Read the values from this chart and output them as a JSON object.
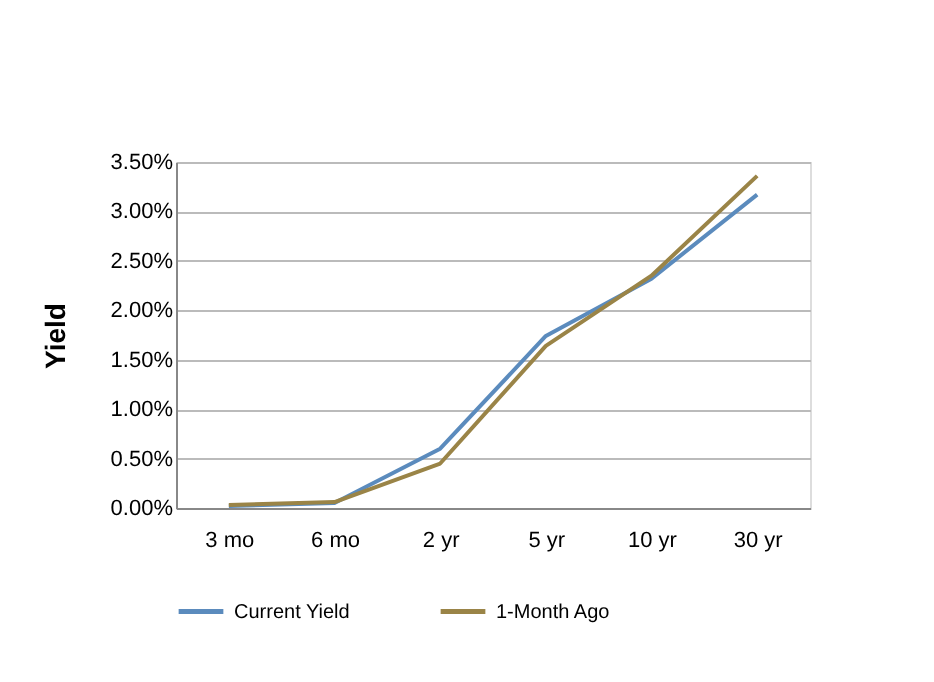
{
  "chart_data": {
    "type": "line",
    "ylabel": "Yield",
    "categories": [
      "3 mo",
      "6 mo",
      "2 yr",
      "5 yr",
      "10 yr",
      "30 yr"
    ],
    "series": [
      {
        "name": "Current Yield",
        "color": "#5b8bbd",
        "values": [
          0.02,
          0.05,
          0.6,
          1.74,
          2.32,
          3.17
        ]
      },
      {
        "name": "1-Month Ago",
        "color": "#9a8447",
        "values": [
          0.03,
          0.06,
          0.45,
          1.64,
          2.35,
          3.36
        ]
      }
    ],
    "ylim": [
      0,
      3.5
    ],
    "yticks": [
      {
        "value": 0,
        "label": "0.00%"
      },
      {
        "value": 0.5,
        "label": "0.50%"
      },
      {
        "value": 1,
        "label": "1.00%"
      },
      {
        "value": 1.5,
        "label": "1.50%"
      },
      {
        "value": 2,
        "label": "2.00%"
      },
      {
        "value": 2.5,
        "label": "2.50%"
      },
      {
        "value": 3,
        "label": "3.00%"
      },
      {
        "value": 3.5,
        "label": "3.50%"
      }
    ],
    "grid": "y",
    "legend": "bottom",
    "marker": "none",
    "line_style": "solid"
  }
}
